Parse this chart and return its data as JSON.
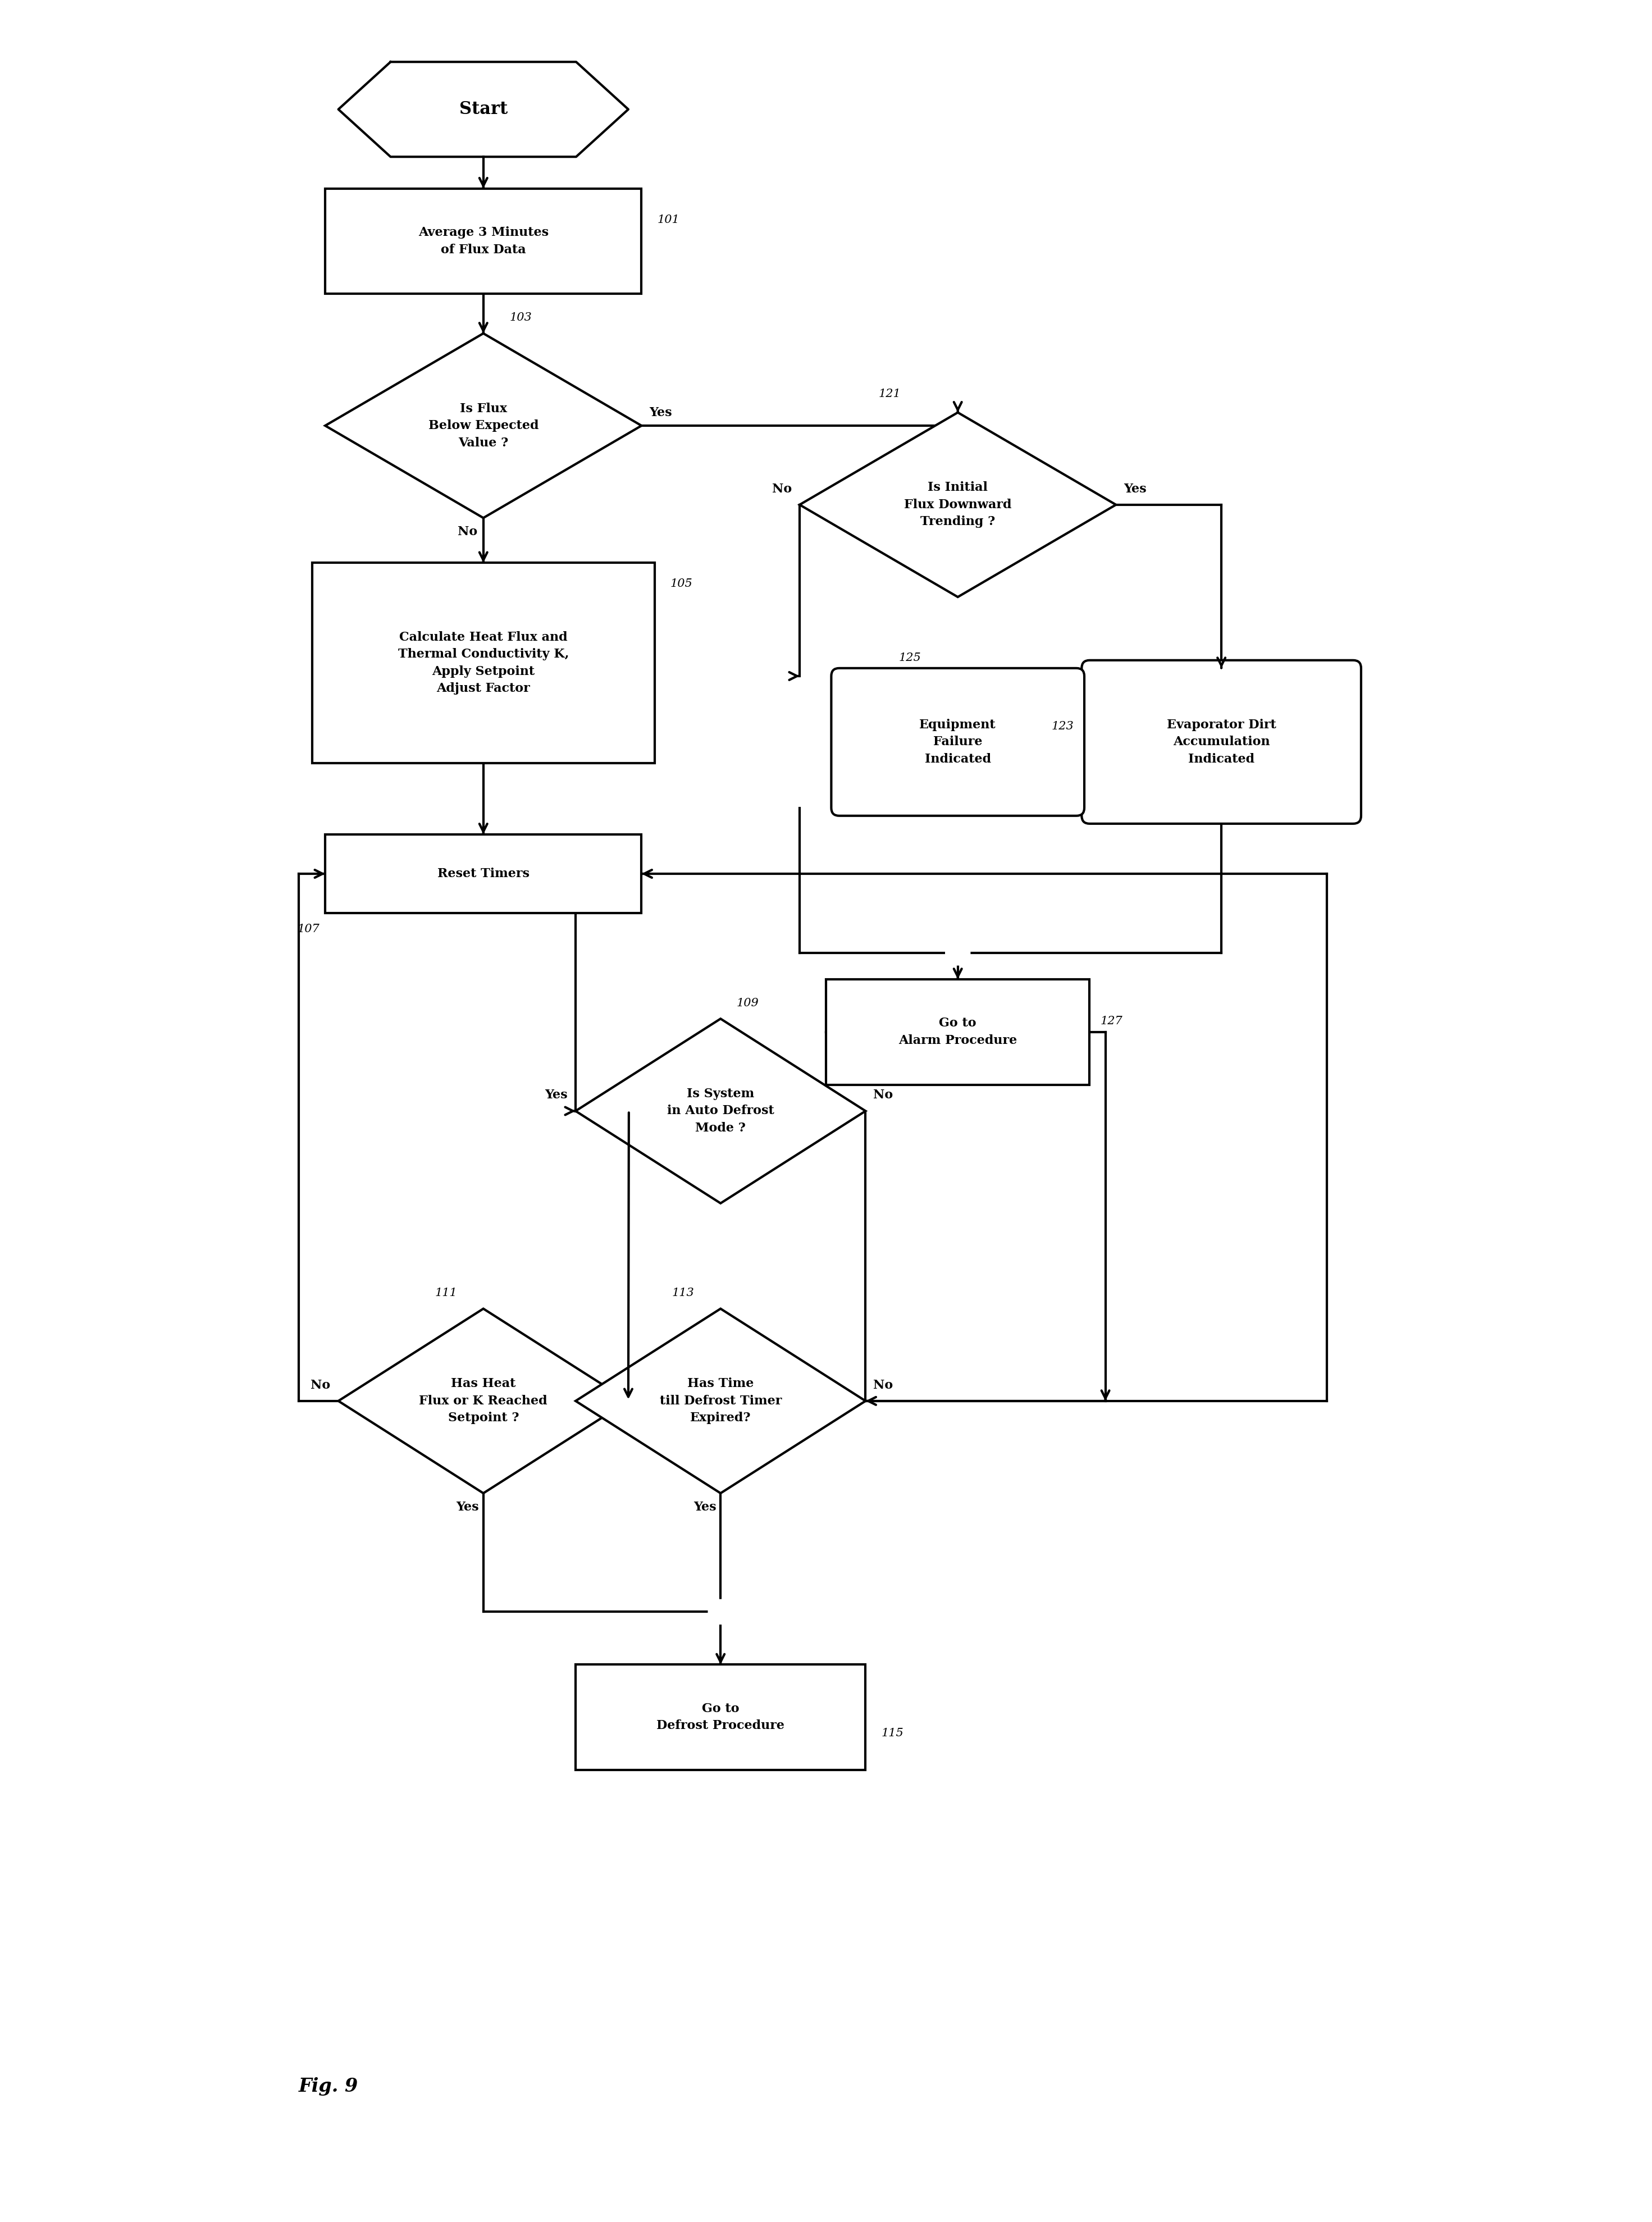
{
  "bg_color": "#ffffff",
  "fig_width": 29.42,
  "fig_height": 39.57,
  "lw": 3.0,
  "font_size": 16,
  "label_font_size": 15,
  "fig_label": "Fig. 9",
  "xlim": [
    0,
    22
  ],
  "ylim": [
    0,
    42
  ]
}
